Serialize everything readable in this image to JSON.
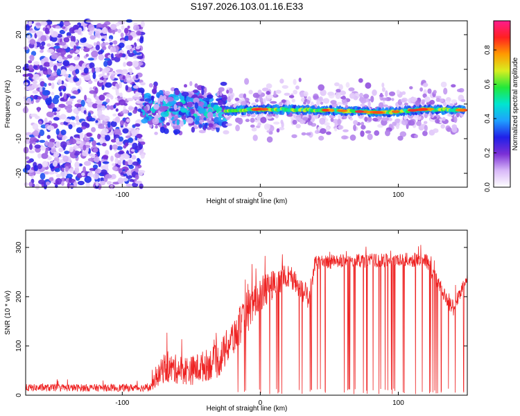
{
  "title": "S197.2026.103.01.16.E33",
  "chart_data": [
    {
      "type": "heatmap",
      "title": "S197.2026.103.01.16.E33",
      "xlabel": "Height of straight line (km)",
      "ylabel": "Frequency (Hz)",
      "xlim": [
        -170,
        150
      ],
      "ylim": [
        -24,
        24
      ],
      "xticks": [
        -100,
        0,
        100
      ],
      "yticks": [
        -20,
        -10,
        0,
        10,
        20
      ],
      "colorbar": {
        "label": "Normalized spectral amplitude",
        "range": [
          0,
          0.97
        ],
        "ticks": [
          0.0,
          0.2,
          0.4,
          0.6,
          0.8
        ],
        "colors": [
          "#ffffff",
          "#d8b8f8",
          "#7b2fd6",
          "#2020e8",
          "#1fa0ff",
          "#00e5d0",
          "#22e83a",
          "#d8ee20",
          "#ff9a00",
          "#ff2020",
          "#ff1b8d"
        ]
      },
      "features": [
        {
          "name": "broadband noise region",
          "x_range": [
            -170,
            -85
          ],
          "freq_range": [
            -24,
            24
          ],
          "amplitude_range": [
            0.05,
            0.35
          ]
        },
        {
          "name": "scattered signal region",
          "x_range": [
            -85,
            -25
          ],
          "freq_range": [
            -9,
            8
          ],
          "amplitude_range": [
            0.1,
            0.6
          ]
        },
        {
          "name": "signal track",
          "x_range": [
            -25,
            148
          ],
          "center_freq": [
            [
              -25,
              -2
            ],
            [
              0,
              -1.5
            ],
            [
              50,
              -1.8
            ],
            [
              90,
              -2.5
            ],
            [
              120,
              -1.5
            ],
            [
              148,
              -1.8
            ]
          ],
          "amplitude_range": [
            0.3,
            0.95
          ]
        }
      ]
    },
    {
      "type": "line",
      "xlabel": "Height of straight line (km)",
      "ylabel": "SNR (10 * v/v)",
      "xlim": [
        -170,
        150
      ],
      "ylim": [
        0,
        335
      ],
      "xticks": [
        -100,
        0,
        100
      ],
      "yticks": [
        0,
        100,
        200,
        300
      ],
      "color": "#ee2222",
      "envelope": [
        {
          "x": -170,
          "base": 15,
          "spread": 15
        },
        {
          "x": -80,
          "base": 15,
          "spread": 15
        },
        {
          "x": -70,
          "base": 55,
          "spread": 60
        },
        {
          "x": -50,
          "base": 50,
          "spread": 60
        },
        {
          "x": -30,
          "base": 70,
          "spread": 70
        },
        {
          "x": -15,
          "base": 140,
          "spread": 80
        },
        {
          "x": 0,
          "base": 205,
          "spread": 70
        },
        {
          "x": 20,
          "base": 245,
          "spread": 50
        },
        {
          "x": 35,
          "base": 200,
          "spread": 50
        },
        {
          "x": 40,
          "base": 270,
          "spread": 30
        },
        {
          "x": 120,
          "base": 275,
          "spread": 30
        },
        {
          "x": 130,
          "base": 220,
          "spread": 30
        },
        {
          "x": 140,
          "base": 175,
          "spread": 40
        },
        {
          "x": 150,
          "base": 240,
          "spread": 20
        }
      ],
      "dropout_x_range": [
        -20,
        150
      ]
    }
  ]
}
